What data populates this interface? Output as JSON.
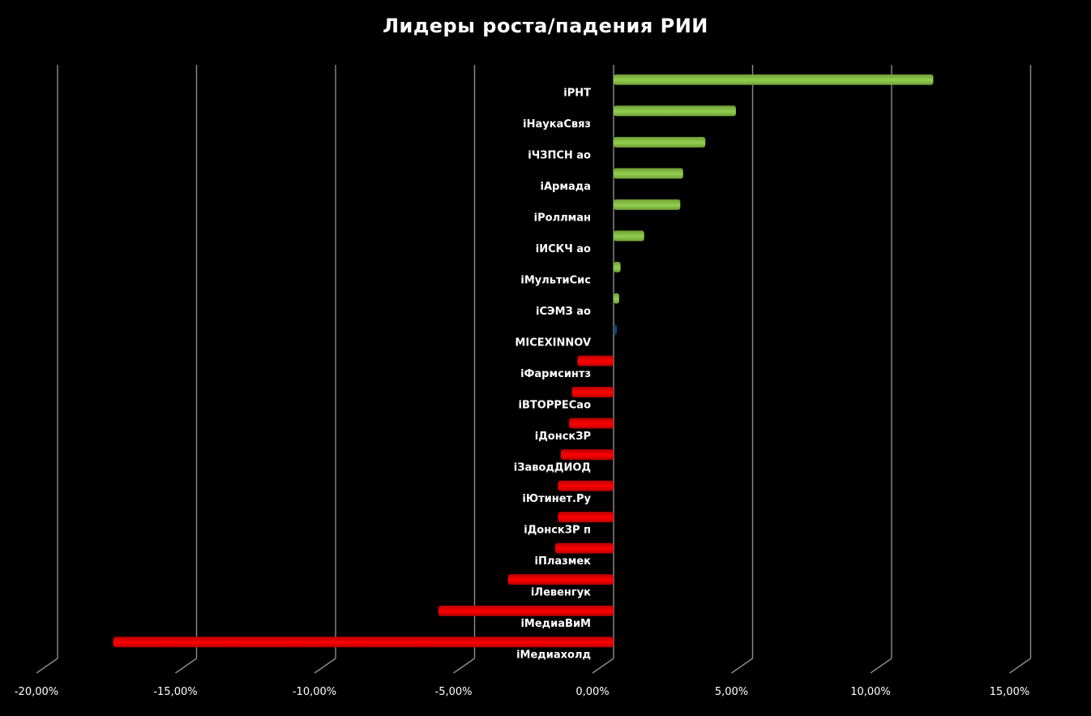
{
  "chart_data": {
    "type": "bar",
    "orientation": "horizontal",
    "title": "Лидеры роста/падения РИИ",
    "xlabel": "",
    "ylabel": "",
    "xlim": [
      -20,
      15
    ],
    "x_ticks": [
      -20,
      -15,
      -10,
      -5,
      0,
      5,
      10,
      15
    ],
    "x_tick_labels": [
      "-20,00%",
      "-15,00%",
      "-10,00%",
      "-5,00%",
      "0,00%",
      "5,00%",
      "10,00%",
      "15,00%"
    ],
    "grid": true,
    "legend": "none",
    "categories": [
      "iРНТ",
      "iНаукаСвяз",
      "iЧЗПСН ао",
      "iАрмада",
      "iРоллман",
      "iИСКЧ ао",
      "iМультиСис",
      "iСЭМЗ ао",
      "MICEXINNOV",
      "iФармсинтз",
      "iВТОРРЕСао",
      "iДонскЗР",
      "iЗаводДИОД",
      "iЮтинет.Ру",
      "iДонскЗР п",
      "iПлазмек",
      "iЛевенгук",
      "iМедиаВиМ",
      "iМедиахолд"
    ],
    "values": [
      11.5,
      4.4,
      3.3,
      2.5,
      2.4,
      1.1,
      0.25,
      0.2,
      0.1,
      -1.3,
      -1.5,
      -1.6,
      -1.9,
      -2.0,
      -2.0,
      -2.1,
      -3.8,
      -6.3,
      -18.0
    ],
    "colors": {
      "positive": "#92d050",
      "negative": "#ff0000",
      "index": "#1f497d",
      "grid": "#8c8c8c",
      "background": "#000000",
      "text": "#ffffff"
    }
  }
}
